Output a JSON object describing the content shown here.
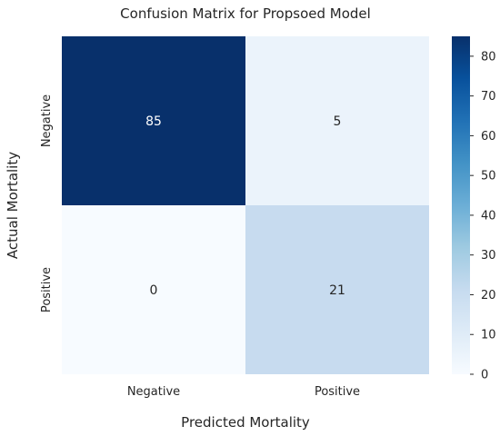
{
  "chart_data": {
    "type": "heatmap",
    "title": "Confusion Matrix for Propsoed Model",
    "xlabel": "Predicted Mortality",
    "ylabel": "Actual Mortality",
    "x_categories": [
      "Negative",
      "Positive"
    ],
    "y_categories": [
      "Negative",
      "Positive"
    ],
    "values": [
      [
        85,
        5
      ],
      [
        0,
        21
      ]
    ],
    "colormap": "Blues",
    "colorbar": {
      "range": [
        0,
        85
      ],
      "ticks": [
        0,
        10,
        20,
        30,
        40,
        50,
        60,
        70,
        80
      ]
    }
  }
}
